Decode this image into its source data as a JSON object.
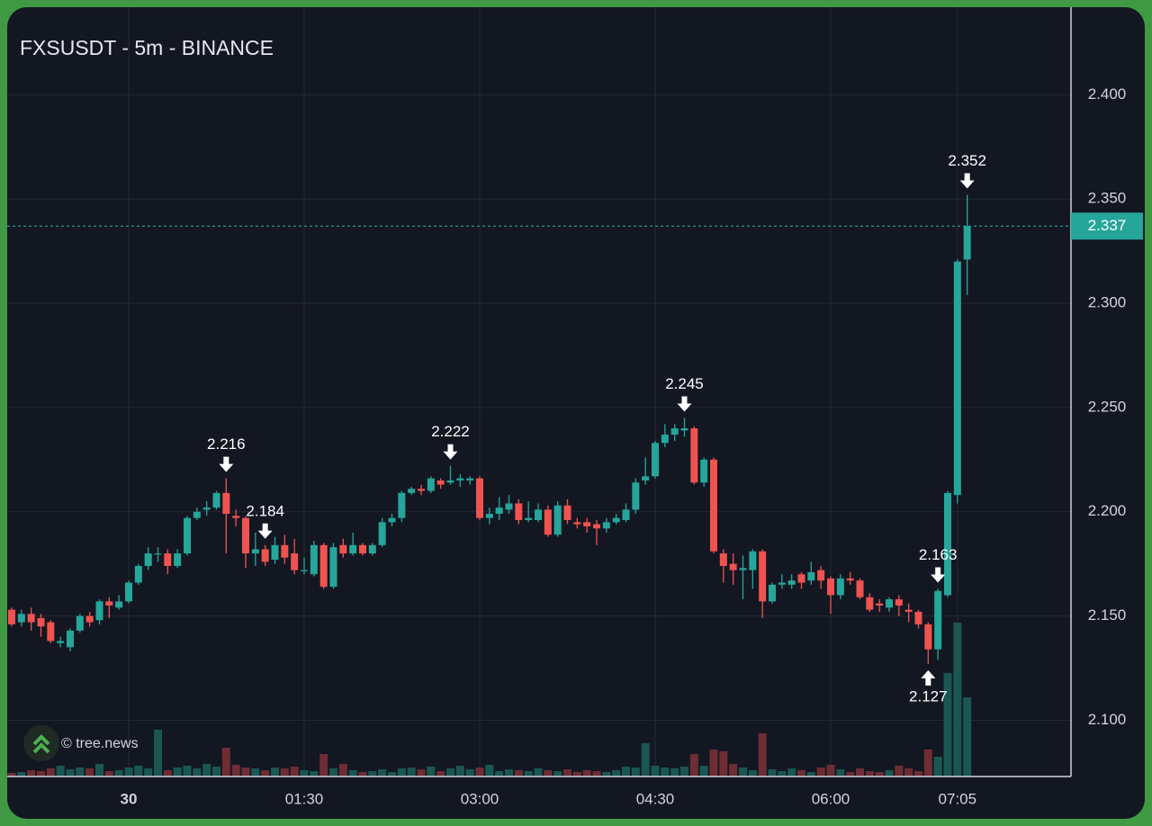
{
  "chart_data": {
    "type": "candlestick",
    "title": "FXSUSDT - 5m - BINANCE",
    "watermark": "© tree.news",
    "categories": [
      null,
      null,
      null,
      null,
      null,
      null,
      null,
      null,
      null,
      null,
      null,
      null,
      "30",
      null,
      null,
      null,
      null,
      null,
      null,
      null,
      null,
      null,
      null,
      null,
      null,
      null,
      null,
      null,
      null,
      null,
      "01:30",
      null,
      null,
      null,
      null,
      null,
      null,
      null,
      null,
      null,
      null,
      null,
      null,
      null,
      null,
      null,
      null,
      null,
      "03:00",
      null,
      null,
      null,
      null,
      null,
      null,
      null,
      null,
      null,
      null,
      null,
      null,
      null,
      null,
      null,
      null,
      null,
      "04:30",
      null,
      null,
      null,
      null,
      null,
      null,
      null,
      null,
      null,
      null,
      null,
      null,
      null,
      null,
      null,
      null,
      null,
      "06:00",
      null,
      null,
      null,
      null,
      null,
      null,
      null,
      null,
      null,
      null,
      null,
      null,
      "07:05",
      null
    ],
    "open": [
      2.153,
      2.147,
      2.151,
      2.149,
      2.147,
      2.137,
      2.135,
      2.143,
      2.15,
      2.148,
      2.157,
      2.154,
      2.157,
      2.166,
      2.174,
      2.18,
      2.18,
      2.174,
      2.18,
      2.197,
      2.201,
      2.202,
      2.209,
      2.198,
      2.197,
      2.18,
      2.182,
      2.177,
      2.184,
      2.18,
      2.172,
      2.17,
      2.184,
      2.164,
      2.184,
      2.18,
      2.184,
      2.18,
      2.184,
      2.195,
      2.197,
      2.209,
      2.211,
      2.21,
      2.215,
      2.214,
      2.215,
      2.215,
      2.216,
      2.197,
      2.199,
      2.201,
      2.204,
      2.196,
      2.196,
      2.201,
      2.189,
      2.203,
      2.195,
      2.195,
      2.194,
      2.192,
      2.195,
      2.196,
      2.201,
      2.215,
      2.217,
      2.233,
      2.237,
      2.239,
      2.24,
      2.214,
      2.225,
      2.18,
      2.175,
      2.172,
      2.172,
      2.181,
      2.157,
      2.165,
      2.165,
      2.17,
      2.167,
      2.172,
      2.168,
      2.16,
      2.168,
      2.167,
      2.159,
      2.156,
      2.154,
      2.158,
      2.153,
      2.152,
      2.146,
      2.134,
      2.16,
      2.208,
      2.321
    ],
    "high": [
      2.154,
      2.153,
      2.154,
      2.151,
      2.148,
      2.14,
      2.144,
      2.151,
      2.152,
      2.158,
      2.159,
      2.16,
      2.167,
      2.175,
      2.183,
      2.183,
      2.182,
      2.182,
      2.198,
      2.202,
      2.205,
      2.21,
      2.216,
      2.201,
      2.198,
      2.19,
      2.184,
      2.188,
      2.189,
      2.187,
      2.178,
      2.186,
      2.185,
      2.185,
      2.187,
      2.19,
      2.185,
      2.185,
      2.197,
      2.199,
      2.21,
      2.212,
      2.213,
      2.217,
      2.216,
      2.222,
      2.218,
      2.217,
      2.217,
      2.202,
      2.207,
      2.208,
      2.206,
      2.205,
      2.204,
      2.203,
      2.205,
      2.206,
      2.197,
      2.197,
      2.196,
      2.197,
      2.199,
      2.204,
      2.216,
      2.226,
      2.234,
      2.242,
      2.242,
      2.245,
      2.241,
      2.226,
      2.226,
      2.182,
      2.18,
      2.179,
      2.182,
      2.182,
      2.166,
      2.17,
      2.17,
      2.171,
      2.176,
      2.174,
      2.169,
      2.17,
      2.171,
      2.168,
      2.161,
      2.158,
      2.159,
      2.16,
      2.156,
      2.153,
      2.147,
      2.163,
      2.21,
      2.321,
      2.352
    ],
    "low": [
      2.145,
      2.145,
      2.143,
      2.14,
      2.137,
      2.135,
      2.133,
      2.142,
      2.145,
      2.146,
      2.149,
      2.153,
      2.156,
      2.165,
      2.172,
      2.176,
      2.17,
      2.173,
      2.179,
      2.196,
      2.198,
      2.201,
      2.18,
      2.193,
      2.173,
      2.174,
      2.174,
      2.175,
      2.175,
      2.17,
      2.17,
      2.169,
      2.163,
      2.163,
      2.178,
      2.179,
      2.179,
      2.179,
      2.183,
      2.193,
      2.195,
      2.208,
      2.208,
      2.209,
      2.211,
      2.213,
      2.212,
      2.213,
      2.196,
      2.194,
      2.196,
      2.199,
      2.194,
      2.195,
      2.195,
      2.188,
      2.188,
      2.194,
      2.192,
      2.19,
      2.184,
      2.19,
      2.194,
      2.195,
      2.199,
      2.213,
      2.216,
      2.231,
      2.234,
      2.236,
      2.213,
      2.212,
      2.18,
      2.166,
      2.165,
      2.158,
      2.163,
      2.149,
      2.156,
      2.163,
      2.163,
      2.163,
      2.165,
      2.163,
      2.151,
      2.158,
      2.165,
      2.158,
      2.152,
      2.152,
      2.152,
      2.15,
      2.147,
      2.144,
      2.127,
      2.129,
      2.159,
      2.204,
      2.304
    ],
    "close": [
      2.146,
      2.151,
      2.147,
      2.145,
      2.138,
      2.138,
      2.143,
      2.15,
      2.147,
      2.157,
      2.155,
      2.157,
      2.166,
      2.174,
      2.18,
      2.18,
      2.174,
      2.18,
      2.197,
      2.2,
      2.202,
      2.209,
      2.199,
      2.197,
      2.18,
      2.182,
      2.176,
      2.184,
      2.178,
      2.172,
      2.172,
      2.184,
      2.164,
      2.183,
      2.18,
      2.184,
      2.18,
      2.184,
      2.195,
      2.197,
      2.209,
      2.211,
      2.21,
      2.216,
      2.213,
      2.215,
      2.216,
      2.216,
      2.197,
      2.199,
      2.202,
      2.204,
      2.196,
      2.197,
      2.201,
      2.189,
      2.203,
      2.196,
      2.194,
      2.193,
      2.192,
      2.195,
      2.197,
      2.201,
      2.214,
      2.217,
      2.233,
      2.237,
      2.24,
      2.24,
      2.214,
      2.225,
      2.181,
      2.174,
      2.172,
      2.173,
      2.181,
      2.157,
      2.165,
      2.166,
      2.167,
      2.166,
      2.171,
      2.167,
      2.16,
      2.168,
      2.167,
      2.159,
      2.153,
      2.155,
      2.158,
      2.155,
      2.152,
      2.146,
      2.134,
      2.162,
      2.209,
      2.32,
      2.337
    ],
    "volume": [
      4,
      5,
      7,
      6,
      9,
      12,
      8,
      10,
      9,
      14,
      6,
      7,
      10,
      12,
      9,
      52,
      7,
      10,
      12,
      9,
      14,
      11,
      32,
      13,
      10,
      9,
      7,
      10,
      9,
      11,
      7,
      6,
      25,
      9,
      14,
      7,
      5,
      6,
      8,
      5,
      9,
      10,
      8,
      11,
      6,
      9,
      12,
      8,
      10,
      13,
      6,
      8,
      7,
      6,
      9,
      7,
      6,
      8,
      5,
      7,
      6,
      5,
      7,
      11,
      10,
      37,
      12,
      10,
      9,
      11,
      25,
      12,
      30,
      28,
      14,
      10,
      7,
      48,
      8,
      6,
      9,
      7,
      5,
      10,
      13,
      8,
      5,
      9,
      6,
      5,
      7,
      12,
      9,
      6,
      30,
      22,
      115,
      171,
      88
    ],
    "up_color": "#26a69a",
    "down_color": "#ef5350",
    "volume_up_color": "#1a5752",
    "volume_down_color": "#6e2c33",
    "ylim": [
      2.073,
      2.442
    ],
    "yticks": [
      {
        "value": 2.1,
        "label": "2.100"
      },
      {
        "value": 2.15,
        "label": "2.150"
      },
      {
        "value": 2.2,
        "label": "2.200"
      },
      {
        "value": 2.25,
        "label": "2.250"
      },
      {
        "value": 2.3,
        "label": "2.300"
      },
      {
        "value": 2.35,
        "label": "2.350"
      },
      {
        "value": 2.4,
        "label": "2.400"
      }
    ],
    "grid": true,
    "last_price": 2.337,
    "annotations": [
      2.216,
      2.163,
      2.222,
      2.184,
      2.245,
      2.127,
      2.352
    ]
  }
}
